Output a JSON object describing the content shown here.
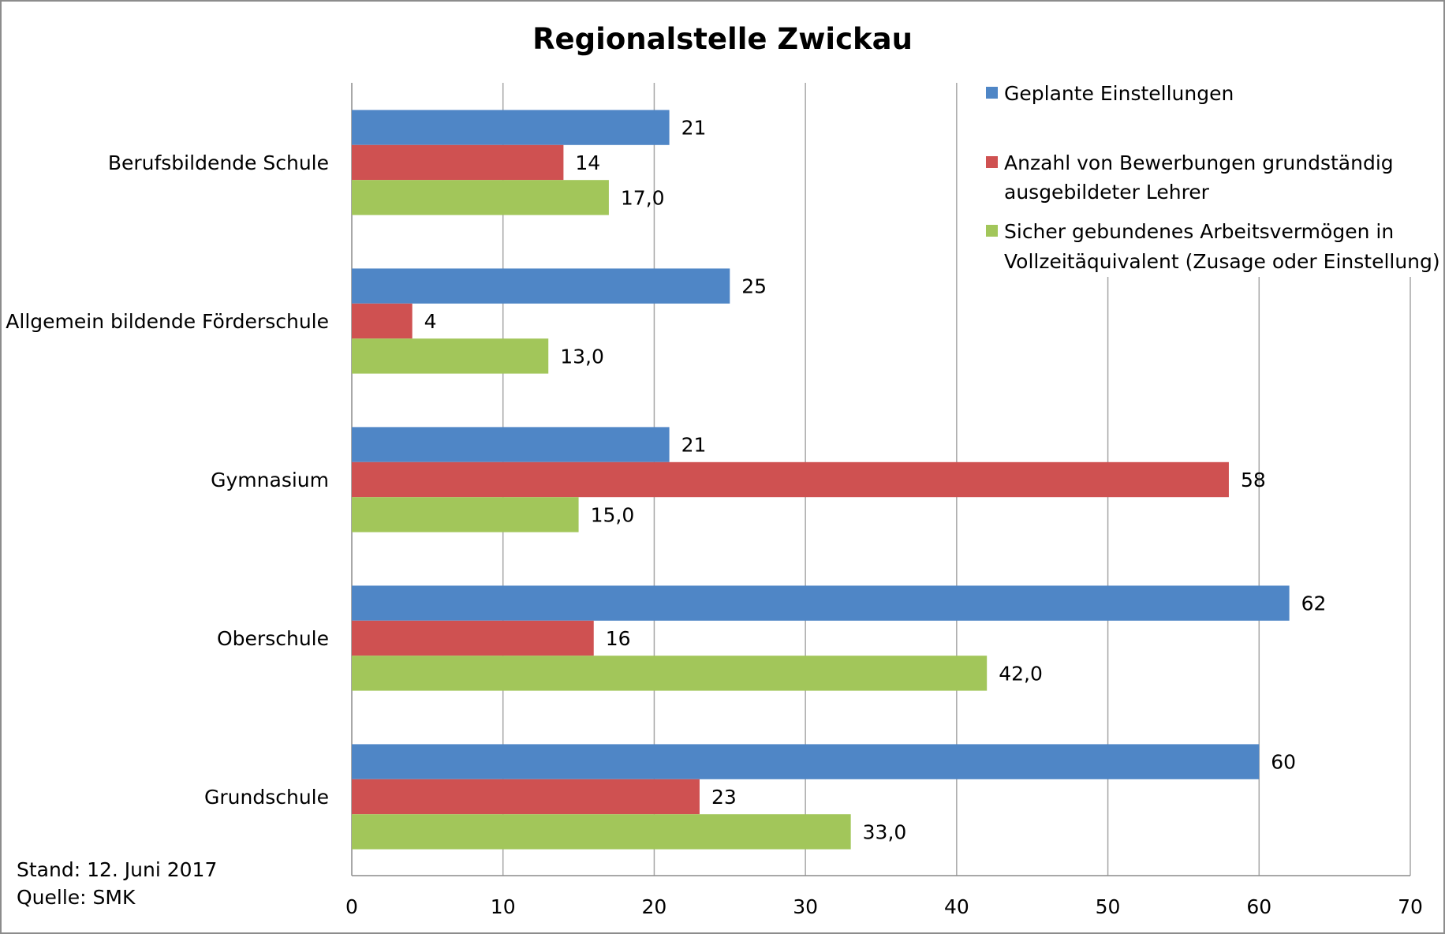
{
  "chart_data": {
    "type": "bar",
    "orientation": "horizontal",
    "title": "Regionalstelle Zwickau",
    "categories": [
      "Berufsbildende Schule",
      "Allgemein bildende Förderschule",
      "Gymnasium",
      "Oberschule",
      "Grundschule"
    ],
    "series": [
      {
        "name": "Geplante Einstellungen",
        "color": "#4f86c6",
        "values": [
          21,
          25,
          21,
          62,
          60
        ],
        "labels": [
          "21",
          "25",
          "21",
          "62",
          "60"
        ]
      },
      {
        "name": "Anzahl von Bewerbungen grundständig ausgebildeter Lehrer",
        "name_lines": [
          "Anzahl von Bewerbungen grundständig",
          "ausgebildeter Lehrer"
        ],
        "color": "#cf5151",
        "values": [
          14,
          4,
          58,
          16,
          23
        ],
        "labels": [
          "14",
          "4",
          "58",
          "16",
          "23"
        ]
      },
      {
        "name": "Sicher gebundenes Arbeitsvermögen in Vollzeitäquivalent (Zusage oder Einstellung)",
        "name_lines": [
          "Sicher gebundenes Arbeitsvermögen in",
          "Vollzeitäquivalent (Zusage oder Einstellung)"
        ],
        "color": "#a2c65a",
        "values": [
          17.0,
          13.0,
          15.0,
          42.0,
          33.0
        ],
        "labels": [
          "17,0",
          "13,0",
          "15,0",
          "42,0",
          "33,0"
        ]
      }
    ],
    "xlim": [
      0,
      70
    ],
    "xticks": [
      "0",
      "10",
      "20",
      "30",
      "40",
      "50",
      "60",
      "70"
    ],
    "grid": true,
    "legend_position": "top-right"
  },
  "footnote": {
    "stand": "Stand: 12. Juni 2017",
    "quelle": "Quelle: SMK"
  }
}
